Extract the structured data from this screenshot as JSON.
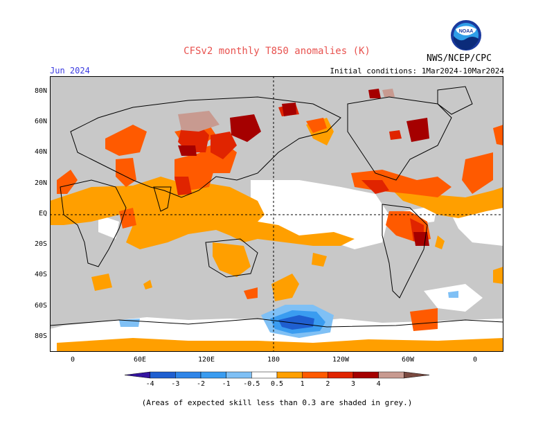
{
  "title": "CFSv2 monthly T850 anomalies (K)",
  "agency": "NWS/NCEP/CPC",
  "logo_text": "NOAA",
  "forecast_month": "Jun 2024",
  "initial_conditions": "Initial conditions: 1Mar2024-10Mar2024",
  "lat_labels": [
    "80N",
    "60N",
    "40N",
    "20N",
    "EQ",
    "20S",
    "40S",
    "60S",
    "80S"
  ],
  "lon_labels": [
    "0",
    "60E",
    "120E",
    "180",
    "120W",
    "60W",
    "0"
  ],
  "colorbar": {
    "tick_labels": [
      "-4",
      "-3",
      "-2",
      "-1",
      "-0.5",
      "0.5",
      "1",
      "2",
      "3",
      "4"
    ],
    "bins": [
      {
        "color": "#3414a0"
      },
      {
        "color": "#1f5fd0"
      },
      {
        "color": "#2f85e8"
      },
      {
        "color": "#3a9cf0"
      },
      {
        "color": "#7fc0f5"
      },
      {
        "color": "#ffffff"
      },
      {
        "color": "#ff9f00"
      },
      {
        "color": "#ff5a00"
      },
      {
        "color": "#e02400"
      },
      {
        "color": "#a50000"
      },
      {
        "color": "#c89a90"
      },
      {
        "color": "#7a4a40"
      }
    ]
  },
  "footnote": "(Areas of expected skill less than 0.3 are shaded in grey.)",
  "colors": {
    "low_skill_grey": "#c8c8c8",
    "anom_0_5_to_1": "#ff9f00",
    "anom_1_to_2": "#ff5a00",
    "anom_2_to_3": "#e02400",
    "anom_3_to_4": "#a50000",
    "anom_4_plus": "#c89a90",
    "anom_neg_0_5_to_neg_1": "#7fc0f5",
    "anom_neg_1_to_neg_2": "#3a9cf0",
    "anom_neg_2_to_neg_3": "#1f5fd0"
  }
}
